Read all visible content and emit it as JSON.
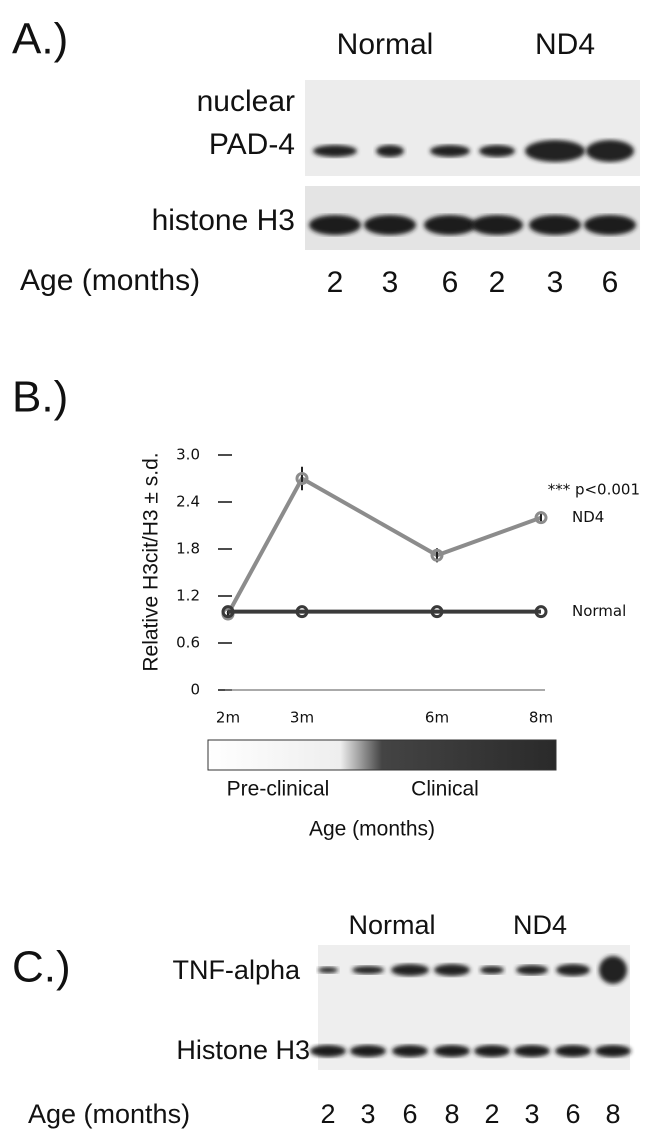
{
  "panel_a": {
    "label": "A.)",
    "groups": [
      "Normal",
      "ND4"
    ],
    "rows": [
      [
        "nuclear",
        "PAD-4"
      ],
      [
        "histone H3"
      ]
    ],
    "age_label": "Age (months)",
    "ages": [
      "2",
      "3",
      "6",
      "2",
      "3",
      "6"
    ]
  },
  "chart_data": {
    "type": "line",
    "label": "B.)",
    "y_label": "Relative H3cit/H3 ± s.d.",
    "categories": [
      "2m",
      "3m",
      "6m",
      "8m"
    ],
    "series": [
      {
        "name": "ND4",
        "color": "#8c8c8c",
        "values": [
          0.97,
          2.7,
          1.72,
          2.2
        ],
        "errors": [
          0.05,
          0.15,
          0.09,
          0.08
        ]
      },
      {
        "name": "Normal",
        "color": "#3a3a3a",
        "values": [
          1,
          1,
          1,
          1
        ]
      }
    ],
    "annotation": "*** p<0.001",
    "ylim": [
      0,
      3.0
    ],
    "yticks": [
      0,
      0.6,
      1.2,
      1.8,
      2.4,
      {
        "value": 3,
        "label": "3.0"
      }
    ],
    "stages": [
      "Pre-clinical",
      "Clinical"
    ],
    "x_label": "Age (months)"
  },
  "panel_c": {
    "label": "C.)",
    "groups": [
      "Normal",
      "ND4"
    ],
    "rows": [
      "TNF-alpha",
      "Histone H3"
    ],
    "age_label": "Age (months)",
    "ages": [
      "2",
      "3",
      "6",
      "8",
      "2",
      "3",
      "6",
      "8"
    ]
  }
}
